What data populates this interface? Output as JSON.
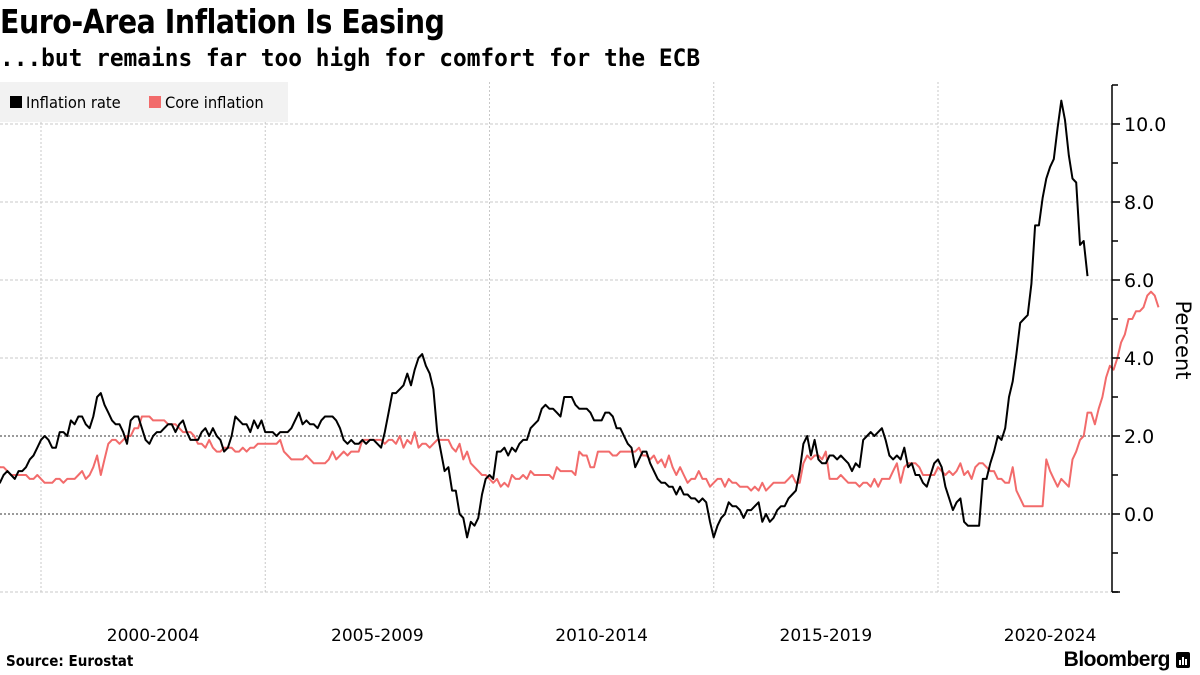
{
  "header": {
    "title": "Euro-Area Inflation Is Easing",
    "subtitle": "...but remains far too high for comfort for the ECB"
  },
  "footer": {
    "source": "Source: Eurostat",
    "brand": "Bloomberg"
  },
  "colors": {
    "inflation": "#000000",
    "core": "#f26b6b",
    "grid": "#bdbdbd",
    "legend_bg": "#f2f2f2"
  },
  "chart_data": {
    "type": "line",
    "title": "Euro-Area Inflation Is Easing",
    "subtitle": "...but remains far too high for comfort for the ECB",
    "xlabel": "",
    "ylabel": "Percent",
    "ylim": [
      -2.0,
      11.0
    ],
    "xlim": [
      1999.0,
      2024.0
    ],
    "yticks": [
      0.0,
      2.0,
      4.0,
      6.0,
      8.0,
      10.0
    ],
    "ytick_labels": [
      "0.0",
      "2.0",
      "4.0",
      "6.0",
      "8.0",
      "10.0"
    ],
    "xtick_labels": [
      "2000-2004",
      "2005-2009",
      "2010-2014",
      "2015-2019",
      "2020-2024"
    ],
    "xtick_positions": [
      2000,
      2005,
      2010,
      2015,
      2020
    ],
    "xlabel_centers": [
      2002.5,
      2007.5,
      2012.5,
      2017.5,
      2022.5
    ],
    "grid": true,
    "legend_position": "top-left",
    "x_start": 1999.0,
    "x_step": 0.08333,
    "series": [
      {
        "name": "Inflation rate",
        "color": "#000000",
        "values": [
          0.8,
          0.8,
          1.0,
          1.1,
          1.0,
          0.9,
          1.1,
          1.1,
          1.2,
          1.4,
          1.5,
          1.7,
          1.9,
          2.0,
          1.9,
          1.7,
          1.7,
          2.1,
          2.1,
          2.0,
          2.4,
          2.3,
          2.5,
          2.5,
          2.3,
          2.2,
          2.5,
          3.0,
          3.1,
          2.8,
          2.6,
          2.4,
          2.3,
          2.3,
          2.1,
          1.8,
          2.4,
          2.5,
          2.5,
          2.2,
          1.9,
          1.8,
          2.0,
          2.1,
          2.1,
          2.2,
          2.3,
          2.3,
          2.1,
          2.3,
          2.4,
          2.1,
          1.9,
          1.9,
          1.9,
          2.1,
          2.2,
          2.0,
          2.2,
          2.0,
          1.9,
          1.6,
          1.7,
          2.0,
          2.5,
          2.4,
          2.3,
          2.3,
          2.1,
          2.4,
          2.2,
          2.4,
          2.1,
          2.1,
          2.1,
          2.0,
          2.1,
          2.1,
          2.1,
          2.2,
          2.4,
          2.6,
          2.3,
          2.4,
          2.3,
          2.3,
          2.2,
          2.4,
          2.5,
          2.5,
          2.5,
          2.4,
          2.2,
          1.9,
          1.8,
          1.9,
          1.8,
          1.8,
          1.9,
          1.8,
          1.9,
          1.9,
          1.8,
          1.7,
          2.1,
          2.6,
          3.1,
          3.1,
          3.2,
          3.3,
          3.6,
          3.3,
          3.7,
          4.0,
          4.1,
          3.8,
          3.6,
          3.2,
          2.1,
          1.6,
          1.1,
          1.2,
          0.6,
          0.6,
          0.0,
          -0.1,
          -0.6,
          -0.2,
          -0.3,
          -0.1,
          0.5,
          0.9,
          1.0,
          0.9,
          1.6,
          1.6,
          1.7,
          1.5,
          1.7,
          1.6,
          1.8,
          1.9,
          1.9,
          2.2,
          2.3,
          2.4,
          2.7,
          2.8,
          2.7,
          2.7,
          2.6,
          2.5,
          3.0,
          3.0,
          3.0,
          2.8,
          2.7,
          2.7,
          2.7,
          2.6,
          2.4,
          2.4,
          2.4,
          2.6,
          2.6,
          2.5,
          2.2,
          2.2,
          2.0,
          1.8,
          1.7,
          1.2,
          1.4,
          1.6,
          1.6,
          1.3,
          1.1,
          0.9,
          0.8,
          0.8,
          0.7,
          0.7,
          0.5,
          0.7,
          0.5,
          0.5,
          0.4,
          0.4,
          0.3,
          0.4,
          0.3,
          -0.2,
          -0.6,
          -0.3,
          -0.1,
          0.0,
          0.3,
          0.2,
          0.2,
          0.1,
          -0.1,
          0.1,
          0.1,
          0.2,
          0.3,
          -0.2,
          0.0,
          -0.2,
          -0.1,
          0.1,
          0.2,
          0.2,
          0.4,
          0.5,
          0.6,
          1.1,
          1.8,
          2.0,
          1.5,
          1.9,
          1.4,
          1.3,
          1.3,
          1.5,
          1.5,
          1.4,
          1.5,
          1.4,
          1.3,
          1.1,
          1.3,
          1.2,
          1.9,
          2.0,
          2.1,
          2.0,
          2.1,
          2.2,
          1.9,
          1.5,
          1.4,
          1.5,
          1.4,
          1.7,
          1.2,
          1.3,
          1.0,
          1.0,
          0.8,
          0.7,
          1.0,
          1.3,
          1.4,
          1.2,
          0.7,
          0.4,
          0.1,
          0.3,
          0.4,
          -0.2,
          -0.3,
          -0.3,
          -0.3,
          -0.3,
          0.9,
          0.9,
          1.3,
          1.6,
          2.0,
          1.9,
          2.2,
          3.0,
          3.4,
          4.1,
          4.9,
          5.0,
          5.1,
          5.9,
          7.4,
          7.4,
          8.1,
          8.6,
          8.9,
          9.1,
          9.9,
          10.6,
          10.1,
          9.2,
          8.6,
          8.5,
          6.9,
          7.0,
          6.1
        ]
      },
      {
        "name": "Core inflation",
        "color": "#f26b6b",
        "values": [
          1.3,
          1.2,
          1.2,
          1.1,
          1.0,
          1.0,
          1.0,
          1.0,
          1.0,
          0.9,
          0.9,
          1.0,
          0.9,
          0.8,
          0.8,
          0.8,
          0.9,
          0.9,
          0.8,
          0.9,
          0.9,
          0.9,
          1.0,
          1.1,
          0.9,
          1.0,
          1.2,
          1.5,
          1.0,
          1.4,
          1.8,
          1.9,
          1.9,
          1.8,
          1.9,
          2.0,
          2.0,
          2.2,
          2.2,
          2.5,
          2.5,
          2.5,
          2.4,
          2.4,
          2.4,
          2.4,
          2.3,
          2.3,
          2.3,
          2.2,
          2.1,
          2.1,
          2.1,
          2.0,
          1.8,
          1.8,
          1.7,
          1.9,
          1.7,
          1.6,
          1.6,
          1.7,
          1.7,
          1.7,
          1.6,
          1.6,
          1.7,
          1.6,
          1.7,
          1.7,
          1.8,
          1.8,
          1.8,
          1.8,
          1.8,
          1.8,
          1.9,
          1.6,
          1.5,
          1.4,
          1.4,
          1.4,
          1.4,
          1.5,
          1.4,
          1.3,
          1.3,
          1.3,
          1.3,
          1.4,
          1.6,
          1.4,
          1.5,
          1.6,
          1.5,
          1.6,
          1.6,
          1.6,
          1.9,
          1.9,
          1.9,
          1.9,
          1.9,
          1.9,
          1.8,
          1.9,
          1.9,
          1.8,
          2.0,
          1.7,
          1.9,
          1.8,
          2.1,
          1.7,
          1.8,
          1.8,
          1.7,
          1.8,
          1.9,
          1.9,
          1.9,
          1.9,
          1.7,
          1.6,
          1.8,
          1.4,
          1.6,
          1.3,
          1.2,
          1.1,
          1.0,
          1.0,
          0.9,
          0.8,
          0.9,
          0.7,
          0.8,
          0.7,
          1.0,
          0.9,
          0.9,
          1.0,
          0.9,
          1.1,
          1.0,
          1.0,
          1.0,
          1.0,
          1.0,
          0.9,
          1.2,
          1.1,
          1.1,
          1.1,
          1.1,
          1.0,
          1.6,
          1.5,
          1.5,
          1.2,
          1.2,
          1.6,
          1.6,
          1.6,
          1.6,
          1.5,
          1.5,
          1.6,
          1.6,
          1.6,
          1.6,
          1.6,
          1.7,
          1.5,
          1.5,
          1.4,
          1.5,
          1.3,
          1.4,
          1.2,
          1.5,
          1.2,
          1.0,
          1.2,
          1.0,
          0.8,
          0.9,
          0.9,
          1.1,
          0.9,
          0.9,
          0.7,
          0.8,
          0.9,
          0.9,
          0.7,
          0.9,
          0.8,
          0.8,
          0.7,
          0.7,
          0.7,
          0.6,
          0.7,
          0.6,
          0.8,
          0.6,
          0.7,
          0.8,
          0.8,
          0.8,
          0.8,
          0.9,
          1.0,
          0.8,
          0.8,
          1.3,
          1.5,
          1.4,
          1.5,
          1.5,
          1.4,
          1.6,
          0.9,
          0.9,
          0.9,
          1.0,
          0.9,
          0.8,
          0.8,
          0.8,
          0.7,
          0.8,
          0.8,
          0.7,
          0.9,
          0.7,
          0.9,
          0.9,
          0.9,
          1.1,
          1.3,
          0.8,
          1.2,
          1.3,
          1.3,
          1.3,
          1.2,
          1.0,
          1.0,
          1.0,
          1.0,
          1.2,
          1.1,
          1.0,
          1.1,
          1.0,
          1.1,
          1.3,
          1.0,
          1.1,
          0.9,
          1.2,
          1.3,
          1.3,
          1.2,
          1.1,
          1.1,
          0.9,
          0.9,
          0.8,
          0.8,
          1.2,
          0.6,
          0.4,
          0.2,
          0.2,
          0.2,
          0.2,
          0.2,
          0.2,
          1.4,
          1.1,
          0.9,
          0.7,
          0.9,
          0.8,
          0.7,
          1.4,
          1.6,
          1.9,
          2.0,
          2.6,
          2.6,
          2.3,
          2.7,
          3.0,
          3.5,
          3.8,
          3.7,
          4.0,
          4.4,
          4.6,
          5.0,
          5.0,
          5.2,
          5.2,
          5.3,
          5.6,
          5.7,
          5.6,
          5.3
        ]
      }
    ]
  }
}
